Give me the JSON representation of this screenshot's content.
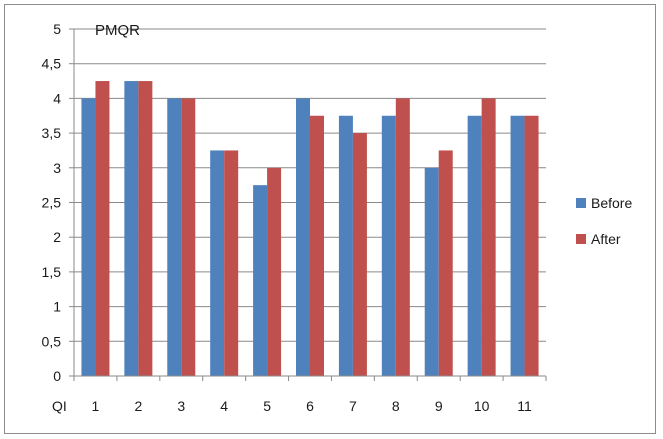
{
  "chart_data": {
    "type": "bar",
    "title": "PMQR",
    "xlabel": "QI",
    "ylabel": "",
    "categories": [
      "1",
      "2",
      "3",
      "4",
      "5",
      "6",
      "7",
      "8",
      "9",
      "10",
      "11"
    ],
    "ylim": [
      0,
      5
    ],
    "yticks": [
      0,
      0.5,
      1,
      1.5,
      2,
      2.5,
      3,
      3.5,
      4,
      4.5,
      5
    ],
    "ytick_labels": [
      "0",
      "0,5",
      "1",
      "1,5",
      "2",
      "2,5",
      "3",
      "3,5",
      "4",
      "4,5",
      "5"
    ],
    "grid": true,
    "legend_position": "right",
    "series": [
      {
        "name": "Before",
        "color": "#4f81bd",
        "values": [
          4,
          4.25,
          4,
          3.25,
          2.75,
          4,
          3.75,
          3.75,
          3,
          3.75,
          3.75
        ]
      },
      {
        "name": "After",
        "color": "#c0504d",
        "values": [
          4.25,
          4.25,
          4,
          3.25,
          3,
          3.75,
          3.5,
          4,
          3.25,
          4,
          3.75
        ]
      }
    ]
  }
}
